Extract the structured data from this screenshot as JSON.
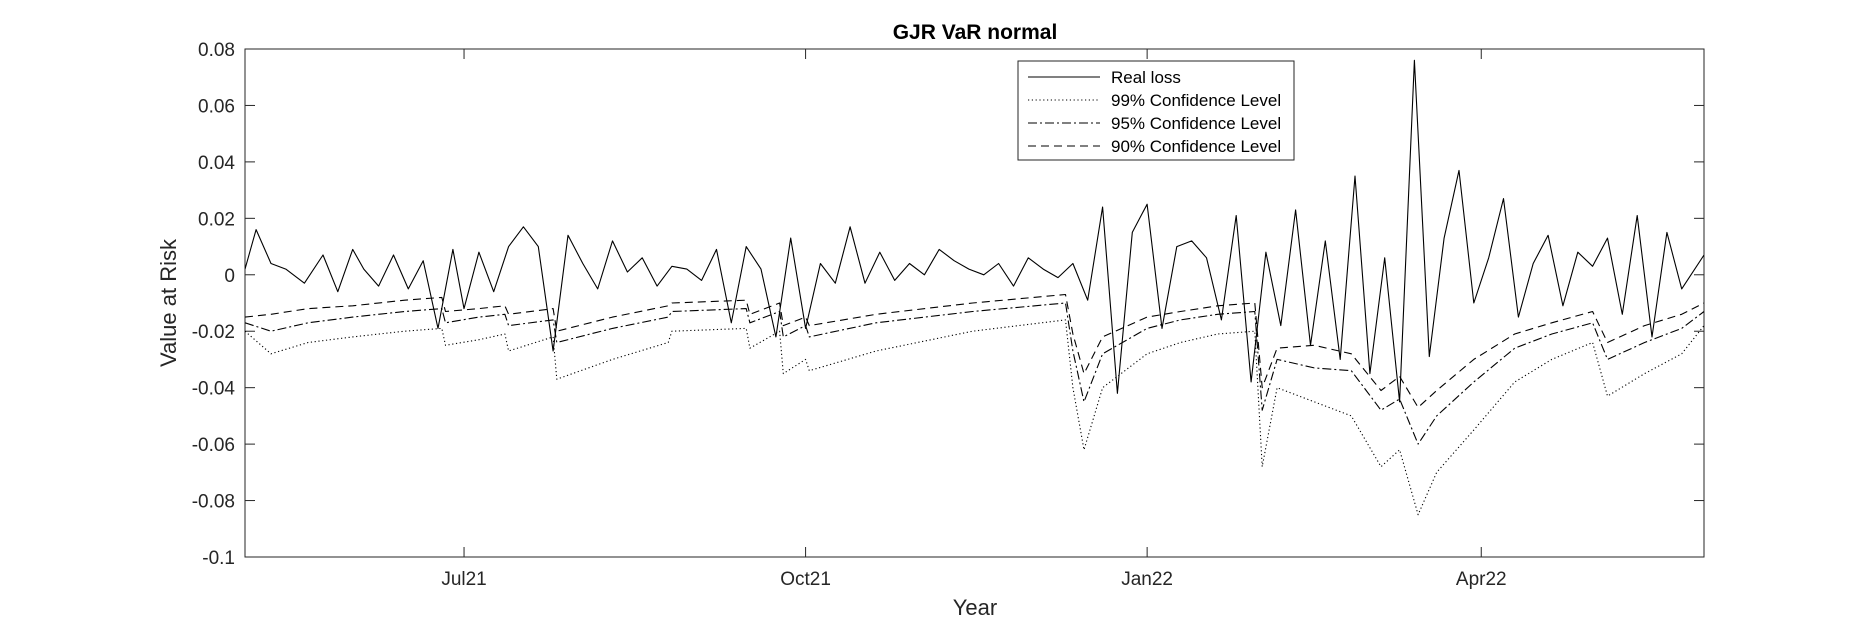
{
  "chart_data": {
    "type": "line",
    "title": "GJR VaR normal",
    "xlabel": "Year",
    "ylabel": "Value at Risk",
    "ylim": [
      -0.1,
      0.08
    ],
    "yticks": [
      -0.1,
      -0.08,
      -0.06,
      -0.04,
      -0.02,
      0,
      0.02,
      0.04,
      0.06,
      0.08
    ],
    "ytick_labels": [
      "-0.1",
      "-0.08",
      "-0.06",
      "-0.04",
      "-0.02",
      "0",
      "0.02",
      "0.04",
      "0.06",
      "0.08"
    ],
    "xlim": [
      "2021-05-03",
      "2022-05-31"
    ],
    "xticks": [
      "2021-07-01",
      "2021-10-01",
      "2022-01-01",
      "2022-04-01"
    ],
    "xtick_labels": [
      "Jul21",
      "Oct21",
      "Jan22",
      "Apr22"
    ],
    "grid": false,
    "legend_position": "top-center",
    "series": [
      {
        "name": "Real loss",
        "style": "solid",
        "color": "#000000",
        "x": [
          "2021-05-03",
          "2021-05-06",
          "2021-05-10",
          "2021-05-14",
          "2021-05-19",
          "2021-05-24",
          "2021-05-28",
          "2021-06-01",
          "2021-06-04",
          "2021-06-08",
          "2021-06-12",
          "2021-06-16",
          "2021-06-20",
          "2021-06-24",
          "2021-06-28",
          "2021-07-01",
          "2021-07-05",
          "2021-07-09",
          "2021-07-13",
          "2021-07-17",
          "2021-07-21",
          "2021-07-25",
          "2021-07-29",
          "2021-08-02",
          "2021-08-06",
          "2021-08-10",
          "2021-08-14",
          "2021-08-18",
          "2021-08-22",
          "2021-08-26",
          "2021-08-30",
          "2021-09-03",
          "2021-09-07",
          "2021-09-11",
          "2021-09-15",
          "2021-09-19",
          "2021-09-23",
          "2021-09-27",
          "2021-10-01",
          "2021-10-05",
          "2021-10-09",
          "2021-10-13",
          "2021-10-17",
          "2021-10-21",
          "2021-10-25",
          "2021-10-29",
          "2021-11-02",
          "2021-11-06",
          "2021-11-10",
          "2021-11-14",
          "2021-11-18",
          "2021-11-22",
          "2021-11-26",
          "2021-11-30",
          "2021-12-04",
          "2021-12-08",
          "2021-12-12",
          "2021-12-16",
          "2021-12-20",
          "2021-12-24",
          "2021-12-28",
          "2022-01-01",
          "2022-01-05",
          "2022-01-09",
          "2022-01-13",
          "2022-01-17",
          "2022-01-21",
          "2022-01-25",
          "2022-01-29",
          "2022-02-02",
          "2022-02-06",
          "2022-02-10",
          "2022-02-14",
          "2022-02-18",
          "2022-02-22",
          "2022-02-26",
          "2022-03-02",
          "2022-03-06",
          "2022-03-10",
          "2022-03-14",
          "2022-03-18",
          "2022-03-22",
          "2022-03-26",
          "2022-03-30",
          "2022-04-03",
          "2022-04-07",
          "2022-04-11",
          "2022-04-15",
          "2022-04-19",
          "2022-04-23",
          "2022-04-27",
          "2022-05-01",
          "2022-05-05",
          "2022-05-09",
          "2022-05-13",
          "2022-05-17",
          "2022-05-21",
          "2022-05-25",
          "2022-05-31"
        ],
        "values": [
          0.002,
          0.016,
          0.004,
          0.002,
          -0.003,
          0.007,
          -0.006,
          0.009,
          0.002,
          -0.004,
          0.007,
          -0.005,
          0.005,
          -0.019,
          0.009,
          -0.012,
          0.008,
          -0.006,
          0.01,
          0.017,
          0.01,
          -0.027,
          0.014,
          0.004,
          -0.005,
          0.012,
          0.001,
          0.006,
          -0.004,
          0.003,
          0.002,
          -0.002,
          0.009,
          -0.017,
          0.01,
          0.002,
          -0.022,
          0.013,
          -0.019,
          0.004,
          -0.003,
          0.017,
          -0.003,
          0.008,
          -0.002,
          0.004,
          0.0,
          0.009,
          0.005,
          0.002,
          0.0,
          0.004,
          -0.004,
          0.006,
          0.002,
          -0.001,
          0.004,
          -0.009,
          0.024,
          -0.042,
          0.015,
          0.025,
          -0.019,
          0.01,
          0.012,
          0.006,
          -0.016,
          0.021,
          -0.038,
          0.008,
          -0.018,
          0.023,
          -0.025,
          0.012,
          -0.03,
          0.035,
          -0.035,
          0.006,
          -0.045,
          0.076,
          -0.029,
          0.013,
          0.037,
          -0.01,
          0.006,
          0.027,
          -0.015,
          0.004,
          0.014,
          -0.011,
          0.008,
          0.003,
          0.013,
          -0.014,
          0.021,
          -0.022,
          0.015,
          -0.005,
          0.007
        ]
      },
      {
        "name": "99% Confidence Level",
        "style": "dotted",
        "color": "#000000",
        "x": [
          "2021-05-03",
          "2021-05-10",
          "2021-05-20",
          "2021-06-01",
          "2021-06-15",
          "2021-06-25",
          "2021-06-26",
          "2021-07-05",
          "2021-07-12",
          "2021-07-13",
          "2021-07-25",
          "2021-07-26",
          "2021-08-10",
          "2021-08-25",
          "2021-08-26",
          "2021-09-15",
          "2021-09-16",
          "2021-09-24",
          "2021-09-25",
          "2021-10-01",
          "2021-10-02",
          "2021-10-20",
          "2021-11-15",
          "2021-12-10",
          "2021-12-12",
          "2021-12-15",
          "2021-12-20",
          "2022-01-01",
          "2022-01-10",
          "2022-01-20",
          "2022-01-30",
          "2022-02-01",
          "2022-02-05",
          "2022-02-15",
          "2022-02-25",
          "2022-03-05",
          "2022-03-10",
          "2022-03-15",
          "2022-03-20",
          "2022-03-30",
          "2022-04-10",
          "2022-04-20",
          "2022-05-01",
          "2022-05-05",
          "2022-05-15",
          "2022-05-25",
          "2022-05-31"
        ],
        "values": [
          -0.02,
          -0.028,
          -0.024,
          -0.022,
          -0.02,
          -0.019,
          -0.025,
          -0.023,
          -0.021,
          -0.027,
          -0.022,
          -0.037,
          -0.03,
          -0.024,
          -0.02,
          -0.019,
          -0.026,
          -0.02,
          -0.035,
          -0.03,
          -0.034,
          -0.027,
          -0.02,
          -0.016,
          -0.04,
          -0.062,
          -0.04,
          -0.028,
          -0.024,
          -0.021,
          -0.02,
          -0.068,
          -0.04,
          -0.045,
          -0.05,
          -0.068,
          -0.062,
          -0.085,
          -0.07,
          -0.055,
          -0.038,
          -0.03,
          -0.024,
          -0.043,
          -0.035,
          -0.028,
          -0.018
        ]
      },
      {
        "name": "95% Confidence Level",
        "style": "dashdot",
        "color": "#000000",
        "x": [
          "2021-05-03",
          "2021-05-10",
          "2021-05-20",
          "2021-06-01",
          "2021-06-15",
          "2021-06-25",
          "2021-06-26",
          "2021-07-05",
          "2021-07-12",
          "2021-07-13",
          "2021-07-25",
          "2021-07-26",
          "2021-08-10",
          "2021-08-25",
          "2021-08-26",
          "2021-09-15",
          "2021-09-16",
          "2021-09-24",
          "2021-09-25",
          "2021-10-01",
          "2021-10-02",
          "2021-10-20",
          "2021-11-15",
          "2021-12-10",
          "2021-12-12",
          "2021-12-15",
          "2021-12-20",
          "2022-01-01",
          "2022-01-10",
          "2022-01-20",
          "2022-01-30",
          "2022-02-01",
          "2022-02-05",
          "2022-02-15",
          "2022-02-25",
          "2022-03-05",
          "2022-03-10",
          "2022-03-15",
          "2022-03-20",
          "2022-03-30",
          "2022-04-10",
          "2022-04-20",
          "2022-05-01",
          "2022-05-05",
          "2022-05-15",
          "2022-05-25",
          "2022-05-31"
        ],
        "values": [
          -0.017,
          -0.02,
          -0.017,
          -0.015,
          -0.013,
          -0.012,
          -0.017,
          -0.015,
          -0.014,
          -0.018,
          -0.016,
          -0.024,
          -0.019,
          -0.015,
          -0.013,
          -0.012,
          -0.017,
          -0.013,
          -0.022,
          -0.018,
          -0.022,
          -0.017,
          -0.013,
          -0.01,
          -0.027,
          -0.045,
          -0.028,
          -0.019,
          -0.016,
          -0.014,
          -0.013,
          -0.048,
          -0.03,
          -0.033,
          -0.034,
          -0.048,
          -0.044,
          -0.06,
          -0.05,
          -0.038,
          -0.026,
          -0.021,
          -0.017,
          -0.03,
          -0.024,
          -0.019,
          -0.013
        ]
      },
      {
        "name": "90% Confidence Level",
        "style": "dashed",
        "color": "#000000",
        "x": [
          "2021-05-03",
          "2021-05-10",
          "2021-05-20",
          "2021-06-01",
          "2021-06-15",
          "2021-06-25",
          "2021-06-26",
          "2021-07-05",
          "2021-07-12",
          "2021-07-13",
          "2021-07-25",
          "2021-07-26",
          "2021-08-10",
          "2021-08-25",
          "2021-08-26",
          "2021-09-15",
          "2021-09-16",
          "2021-09-24",
          "2021-09-25",
          "2021-10-01",
          "2021-10-02",
          "2021-10-20",
          "2021-11-15",
          "2021-12-10",
          "2021-12-12",
          "2021-12-15",
          "2021-12-20",
          "2022-01-01",
          "2022-01-10",
          "2022-01-20",
          "2022-01-30",
          "2022-02-01",
          "2022-02-05",
          "2022-02-15",
          "2022-02-25",
          "2022-03-05",
          "2022-03-10",
          "2022-03-15",
          "2022-03-20",
          "2022-03-30",
          "2022-04-10",
          "2022-04-20",
          "2022-05-01",
          "2022-05-05",
          "2022-05-15",
          "2022-05-25",
          "2022-05-31"
        ],
        "values": [
          -0.015,
          -0.014,
          -0.012,
          -0.011,
          -0.009,
          -0.008,
          -0.013,
          -0.012,
          -0.011,
          -0.014,
          -0.012,
          -0.02,
          -0.015,
          -0.011,
          -0.01,
          -0.009,
          -0.014,
          -0.01,
          -0.018,
          -0.015,
          -0.018,
          -0.014,
          -0.01,
          -0.007,
          -0.021,
          -0.035,
          -0.022,
          -0.015,
          -0.013,
          -0.011,
          -0.01,
          -0.04,
          -0.026,
          -0.025,
          -0.028,
          -0.041,
          -0.036,
          -0.047,
          -0.041,
          -0.03,
          -0.021,
          -0.017,
          -0.013,
          -0.024,
          -0.018,
          -0.014,
          -0.01
        ]
      }
    ]
  }
}
